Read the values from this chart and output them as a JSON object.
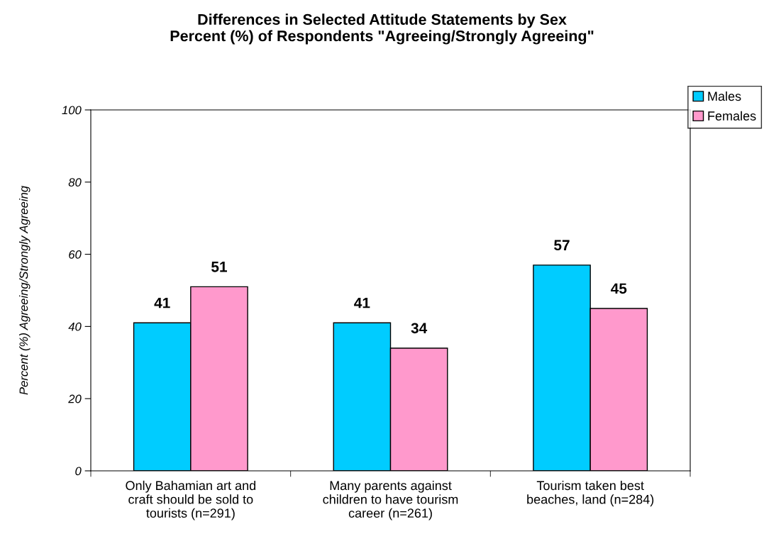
{
  "chart_data": {
    "type": "bar",
    "title": "Differences in Selected Attitude Statements by Sex\nPercent (%) of Respondents \"Agreeing/Strongly Agreeing\"",
    "ylabel": "Percent (%) Agreeing/Strongly Agreeing",
    "categories": [
      "Only Bahamian art and\ncraft should be sold to\ntourists (n=291)",
      "Many parents against\nchildren to have tourism\ncareer (n=261)",
      "Tourism taken best\nbeaches, land (n=284)"
    ],
    "series": [
      {
        "name": "Males",
        "color": "#00ccff",
        "values": [
          41,
          41,
          57
        ]
      },
      {
        "name": "Females",
        "color": "#ff99cc",
        "values": [
          51,
          34,
          45
        ]
      }
    ],
    "ylim": [
      0,
      100
    ],
    "yticks": [
      0,
      20,
      40,
      60,
      80,
      100
    ],
    "data_labels": true,
    "grid": false,
    "legend": "top right"
  }
}
